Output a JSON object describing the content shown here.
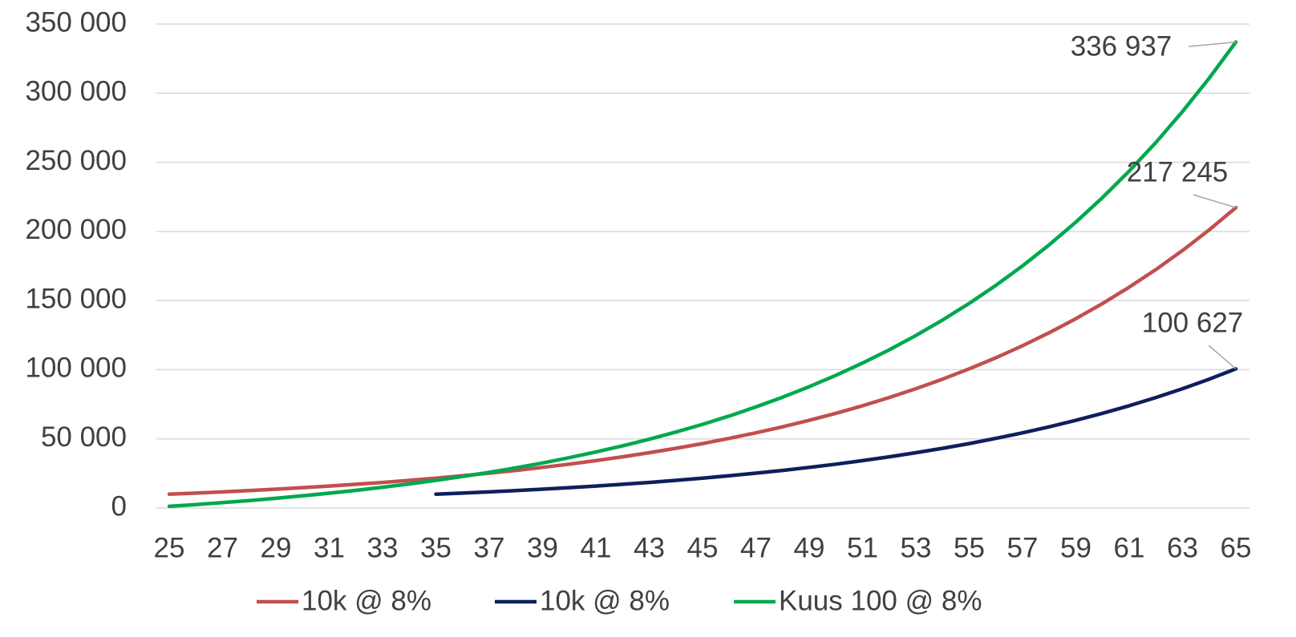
{
  "chart_data": {
    "type": "line",
    "categories": [
      25,
      null,
      27,
      null,
      29,
      null,
      31,
      null,
      33,
      null,
      35,
      null,
      37,
      null,
      39,
      null,
      41,
      null,
      43,
      null,
      45,
      null,
      47,
      null,
      49,
      null,
      51,
      null,
      53,
      null,
      55,
      null,
      57,
      null,
      59,
      null,
      61,
      null,
      63,
      null,
      65
    ],
    "series": [
      {
        "name": "10k @ 8%",
        "color": "#c0504d",
        "values": [
          10000,
          10800,
          11664,
          12597,
          13605,
          14693,
          15869,
          17138,
          18509,
          19990,
          21589,
          23316,
          25182,
          27196,
          29372,
          31722,
          34259,
          37000,
          39960,
          43157,
          46610,
          50338,
          54365,
          58715,
          63412,
          68485,
          73964,
          79881,
          86271,
          93173,
          100627,
          108677,
          117371,
          126760,
          136901,
          147853,
          159682,
          172456,
          186253,
          201153,
          217245
        ],
        "value_labels": [
          null,
          null,
          null,
          null,
          null,
          null,
          null,
          null,
          null,
          null,
          null,
          null,
          null,
          null,
          null,
          null,
          null,
          null,
          null,
          null,
          null,
          null,
          null,
          null,
          null,
          null,
          null,
          null,
          null,
          null,
          null,
          null,
          null,
          null,
          null,
          null,
          null,
          null,
          null,
          null,
          "217 245"
        ]
      },
      {
        "name": "10k @ 8%",
        "color": "#0d1f5c",
        "values": [
          null,
          null,
          null,
          null,
          null,
          null,
          null,
          null,
          null,
          null,
          10000,
          10800,
          11664,
          12597,
          13605,
          14693,
          15869,
          17138,
          18509,
          19990,
          21589,
          23316,
          25182,
          27196,
          29372,
          31722,
          34259,
          37000,
          39960,
          43157,
          46610,
          50338,
          54365,
          58715,
          63412,
          68485,
          73964,
          79881,
          86271,
          93173,
          100627
        ],
        "value_labels": [
          null,
          null,
          null,
          null,
          null,
          null,
          null,
          null,
          null,
          null,
          null,
          null,
          null,
          null,
          null,
          null,
          null,
          null,
          null,
          null,
          null,
          null,
          null,
          null,
          null,
          null,
          null,
          null,
          null,
          null,
          null,
          null,
          null,
          null,
          null,
          null,
          null,
          null,
          null,
          null,
          "100 627"
        ]
      },
      {
        "name": "Kuus 100 @ 8%",
        "color": "#00a84f",
        "values": [
          1200,
          2496,
          3896,
          5407,
          7040,
          8803,
          10707,
          12764,
          14985,
          17384,
          19975,
          22773,
          25794,
          29058,
          32583,
          36389,
          40500,
          44940,
          49736,
          54914,
          60508,
          66548,
          73072,
          80118,
          87727,
          95945,
          104821,
          114407,
          124759,
          135940,
          148015,
          161056,
          175141,
          190352,
          206780,
          224523,
          243684,
          264379,
          286729,
          310868,
          336937
        ],
        "value_labels": [
          null,
          null,
          null,
          null,
          null,
          null,
          null,
          null,
          null,
          null,
          null,
          null,
          null,
          null,
          null,
          null,
          null,
          null,
          null,
          null,
          null,
          null,
          null,
          null,
          null,
          null,
          null,
          null,
          null,
          null,
          null,
          null,
          null,
          null,
          null,
          null,
          null,
          null,
          null,
          null,
          "336 937"
        ]
      }
    ],
    "ylim": [
      0,
      350000
    ],
    "yticks": [
      0,
      {
        "value": 50000,
        "label": "50 000"
      },
      {
        "value": 100000,
        "label": "100 000"
      },
      {
        "value": 150000,
        "label": "150 000"
      },
      {
        "value": 200000,
        "label": "200 000"
      },
      {
        "value": 250000,
        "label": "250 000"
      },
      {
        "value": 300000,
        "label": "300 000"
      },
      {
        "value": 350000,
        "label": "350 000"
      }
    ],
    "grid": true,
    "legend": "bottom"
  }
}
